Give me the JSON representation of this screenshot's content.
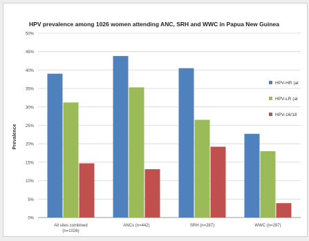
{
  "chart_data": {
    "type": "bar",
    "title": "HPV prevalence among 1026 women attending ANC, SRH and WWC in Papua New Guinea",
    "xlabel": "",
    "ylabel": "Prevalence",
    "ylim": [
      0,
      50
    ],
    "y_ticks": [
      "0%",
      "5%",
      "10%",
      "15%",
      "20%",
      "25%",
      "30%",
      "35%",
      "40%",
      "45%",
      "50%"
    ],
    "grid": true,
    "legend_position": "right",
    "categories": [
      [
        "All sites combined",
        "(n=1026)"
      ],
      [
        "ANCs (n=442)"
      ],
      [
        "SRH (n=287)"
      ],
      [
        "WWC (n=297)"
      ]
    ],
    "series": [
      {
        "name": "HPV-HR (al",
        "color": "#4f81bd",
        "values": [
          39,
          43.8,
          40.5,
          22.7
        ]
      },
      {
        "name": "HPV-LR (al",
        "color": "#9bbb59",
        "values": [
          31.2,
          35.3,
          26.5,
          18
        ]
      },
      {
        "name": "HPV-16/18",
        "color": "#c0504d",
        "values": [
          14.7,
          13.1,
          19.2,
          3.9
        ]
      }
    ]
  }
}
